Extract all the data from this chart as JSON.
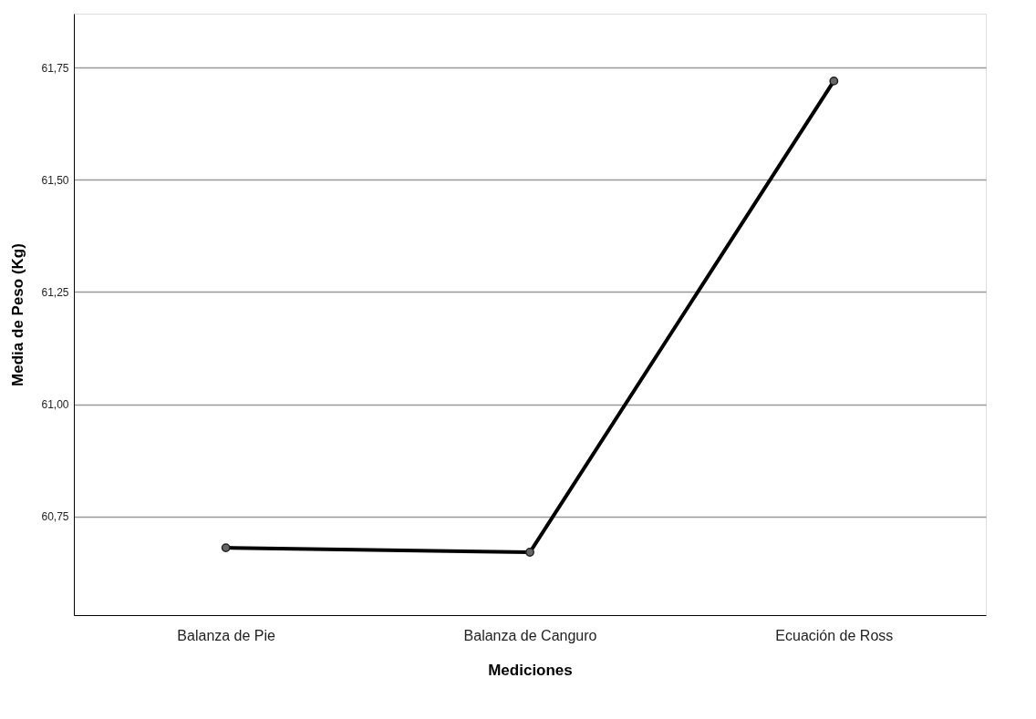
{
  "chart_data": {
    "type": "line",
    "xlabel": "Mediciones",
    "ylabel": "Media de Peso (Kg)",
    "categories": [
      "Balanza de Pie",
      "Balanza de Canguro",
      "Ecuación de Ross"
    ],
    "series": [
      {
        "color": "#000000",
        "values": [
          60.68,
          60.67,
          61.72
        ]
      }
    ],
    "ylim": [
      60.53,
      61.87
    ],
    "yticks": [
      {
        "value": 60.75,
        "label": "60,75"
      },
      {
        "value": 61.0,
        "label": "61,00"
      },
      {
        "value": 61.25,
        "label": "61,25"
      },
      {
        "value": 61.5,
        "label": "61,50"
      },
      {
        "value": 61.75,
        "label": "61,75"
      }
    ],
    "grid": "y",
    "marker": "circle",
    "line_style": "solid"
  }
}
